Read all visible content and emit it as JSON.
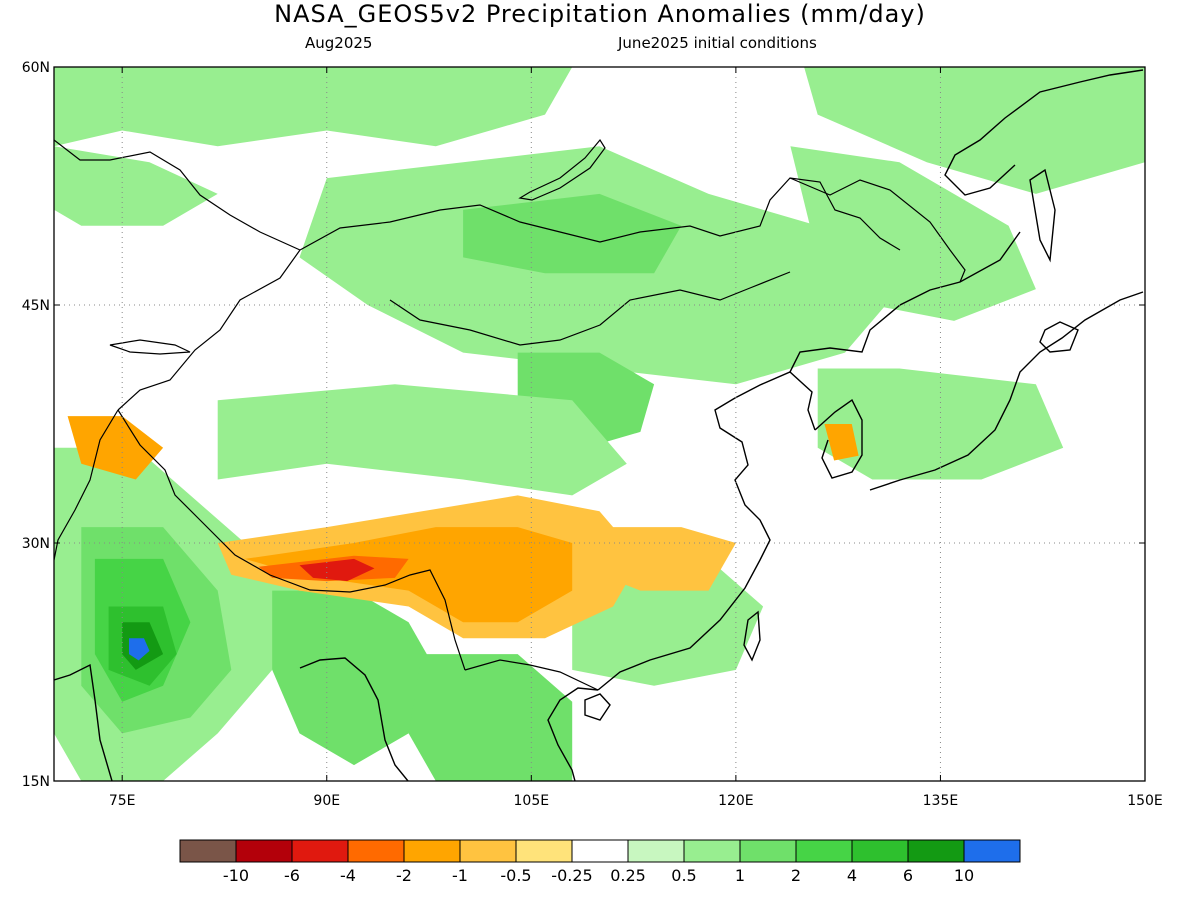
{
  "header": {
    "title": "NASA_GEOS5v2 Precipitation Anomalies (mm/day)",
    "valid_month": "Aug2025",
    "init_conditions": "June2025 initial conditions"
  },
  "map": {
    "projection": "lat-lon",
    "lon_range": [
      70,
      150
    ],
    "lat_range": [
      15,
      60
    ],
    "lon_ticks": [
      {
        "value": 75,
        "label": "75E"
      },
      {
        "value": 90,
        "label": "90E"
      },
      {
        "value": 105,
        "label": "105E"
      },
      {
        "value": 120,
        "label": "120E"
      },
      {
        "value": 135,
        "label": "135E"
      },
      {
        "value": 150,
        "label": "150E"
      }
    ],
    "lat_ticks": [
      {
        "value": 60,
        "label": "60N"
      },
      {
        "value": 45,
        "label": "45N"
      },
      {
        "value": 30,
        "label": "30N"
      },
      {
        "value": 15,
        "label": "15N"
      }
    ],
    "grid": true,
    "grid_style": "dotted",
    "coastline_color": "#000000",
    "regions": [
      {
        "name": "northern-siberia",
        "class": "0.5 to 1",
        "polygon": [
          [
            70,
            60
          ],
          [
            108,
            60
          ],
          [
            106,
            57
          ],
          [
            98,
            55
          ],
          [
            90,
            56
          ],
          [
            82,
            55
          ],
          [
            75,
            56
          ],
          [
            70,
            55
          ]
        ]
      },
      {
        "name": "northwest-kazakhstan",
        "class": "0.5 to 1",
        "polygon": [
          [
            70,
            55
          ],
          [
            77,
            54
          ],
          [
            82,
            52
          ],
          [
            78,
            50
          ],
          [
            72,
            50
          ],
          [
            70,
            51
          ]
        ]
      },
      {
        "name": "mongolia-baikal",
        "class": "0.5 to 1",
        "polygon": [
          [
            90,
            53
          ],
          [
            100,
            54
          ],
          [
            110,
            55
          ],
          [
            118,
            52
          ],
          [
            126,
            50
          ],
          [
            132,
            46
          ],
          [
            128,
            42
          ],
          [
            120,
            40
          ],
          [
            110,
            41
          ],
          [
            100,
            42
          ],
          [
            93,
            45
          ],
          [
            88,
            48
          ]
        ]
      },
      {
        "name": "mongolia-core",
        "class": "1 to 2",
        "polygon": [
          [
            100,
            51
          ],
          [
            110,
            52
          ],
          [
            116,
            50
          ],
          [
            114,
            47
          ],
          [
            106,
            47
          ],
          [
            100,
            48
          ]
        ]
      },
      {
        "name": "north-china",
        "class": "1 to 2",
        "polygon": [
          [
            104,
            42
          ],
          [
            110,
            42
          ],
          [
            114,
            40
          ],
          [
            113,
            37
          ],
          [
            109,
            36
          ],
          [
            104,
            38
          ]
        ]
      },
      {
        "name": "northeast-china",
        "class": "0.5 to 1",
        "polygon": [
          [
            124,
            55
          ],
          [
            132,
            54
          ],
          [
            140,
            50
          ],
          [
            142,
            46
          ],
          [
            136,
            44
          ],
          [
            130,
            45
          ],
          [
            126,
            48
          ]
        ]
      },
      {
        "name": "kamchatka-okhotsk",
        "class": "0.5 to 1",
        "polygon": [
          [
            125,
            60
          ],
          [
            150,
            60
          ],
          [
            150,
            54
          ],
          [
            142,
            52
          ],
          [
            134,
            54
          ],
          [
            126,
            57
          ]
        ]
      },
      {
        "name": "tibet-band",
        "class": "0.5 to 1",
        "polygon": [
          [
            82,
            39
          ],
          [
            95,
            40
          ],
          [
            108,
            39
          ],
          [
            112,
            35
          ],
          [
            108,
            33
          ],
          [
            100,
            34
          ],
          [
            90,
            35
          ],
          [
            82,
            34
          ]
        ]
      },
      {
        "name": "west-india",
        "class": "0.5 to 1",
        "polygon": [
          [
            70,
            36
          ],
          [
            76,
            36
          ],
          [
            80,
            33
          ],
          [
            84,
            30
          ],
          [
            88,
            27
          ],
          [
            86,
            22
          ],
          [
            82,
            18
          ],
          [
            78,
            15
          ],
          [
            72,
            15
          ],
          [
            70,
            18
          ]
        ]
      },
      {
        "name": "west-india-wet",
        "class": "1 to 2",
        "polygon": [
          [
            72,
            31
          ],
          [
            78,
            31
          ],
          [
            82,
            27
          ],
          [
            83,
            22
          ],
          [
            80,
            19
          ],
          [
            75,
            18
          ],
          [
            72,
            21
          ]
        ]
      },
      {
        "name": "west-india-wetter",
        "class": "2 to 4",
        "polygon": [
          [
            73,
            29
          ],
          [
            78,
            29
          ],
          [
            80,
            25
          ],
          [
            78,
            21
          ],
          [
            75,
            20
          ],
          [
            73,
            23
          ]
        ]
      },
      {
        "name": "central-india-core",
        "class": "4 to 6",
        "polygon": [
          [
            74,
            26
          ],
          [
            78,
            26
          ],
          [
            79,
            23
          ],
          [
            77,
            21
          ],
          [
            74,
            22
          ]
        ]
      },
      {
        "name": "central-india-max",
        "class": "6 to 10",
        "polygon": [
          [
            75,
            25
          ],
          [
            77,
            25
          ],
          [
            78,
            23
          ],
          [
            76,
            22
          ],
          [
            75,
            23
          ]
        ]
      },
      {
        "name": "central-india-peak",
        "class": "> 10",
        "polygon": [
          [
            75.5,
            24
          ],
          [
            76.6,
            24
          ],
          [
            77,
            23.2
          ],
          [
            76.2,
            22.6
          ],
          [
            75.5,
            23
          ]
        ]
      },
      {
        "name": "bangladesh-myanmar",
        "class": "1 to 2",
        "polygon": [
          [
            86,
            27
          ],
          [
            92,
            27
          ],
          [
            96,
            25
          ],
          [
            98,
            22
          ],
          [
            96,
            18
          ],
          [
            92,
            16
          ],
          [
            88,
            18
          ],
          [
            86,
            22
          ]
        ]
      },
      {
        "name": "indochina",
        "class": "1 to 2",
        "polygon": [
          [
            97,
            23
          ],
          [
            104,
            23
          ],
          [
            108,
            20
          ],
          [
            108,
            15
          ],
          [
            98,
            15
          ],
          [
            96,
            18
          ]
        ]
      },
      {
        "name": "south-china",
        "class": "0.5 to 1",
        "polygon": [
          [
            108,
            28
          ],
          [
            118,
            29
          ],
          [
            122,
            26
          ],
          [
            120,
            22
          ],
          [
            114,
            21
          ],
          [
            108,
            22
          ]
        ]
      },
      {
        "name": "korea-japan",
        "class": "0.5 to 1",
        "polygon": [
          [
            126,
            41
          ],
          [
            132,
            41
          ],
          [
            142,
            40
          ],
          [
            144,
            36
          ],
          [
            138,
            34
          ],
          [
            130,
            34
          ],
          [
            126,
            36
          ]
        ]
      },
      {
        "name": "korea-peninsula-dry",
        "class": "-2 to -1",
        "polygon": [
          [
            126.5,
            37.5
          ],
          [
            128.5,
            37.5
          ],
          [
            129,
            35.5
          ],
          [
            127.2,
            35.2
          ]
        ]
      },
      {
        "name": "tibet-himalaya-dry",
        "class": "-1 to -0.5",
        "polygon": [
          [
            82,
            30
          ],
          [
            90,
            31
          ],
          [
            97,
            32
          ],
          [
            104,
            33
          ],
          [
            110,
            32
          ],
          [
            113,
            29
          ],
          [
            111,
            26
          ],
          [
            106,
            24
          ],
          [
            100,
            24
          ],
          [
            96,
            26
          ],
          [
            88,
            27
          ],
          [
            83,
            28
          ]
        ]
      },
      {
        "name": "himalaya-dry-core",
        "class": "-2 to -1",
        "polygon": [
          [
            84,
            29
          ],
          [
            92,
            30
          ],
          [
            98,
            31
          ],
          [
            104,
            31
          ],
          [
            108,
            30
          ],
          [
            108,
            27
          ],
          [
            104,
            25
          ],
          [
            100,
            25
          ],
          [
            96,
            27
          ],
          [
            88,
            28
          ]
        ]
      },
      {
        "name": "himalaya-drier",
        "class": "-4 to -2",
        "polygon": [
          [
            85,
            28.5
          ],
          [
            92,
            29.2
          ],
          [
            96,
            29
          ],
          [
            95,
            27.8
          ],
          [
            90,
            27.6
          ],
          [
            86,
            27.8
          ]
        ]
      },
      {
        "name": "himalaya-peak-dry",
        "class": "-6 to -4",
        "polygon": [
          [
            88,
            28.6
          ],
          [
            92,
            29
          ],
          [
            93.5,
            28.4
          ],
          [
            91.5,
            27.6
          ],
          [
            89,
            27.8
          ]
        ]
      },
      {
        "name": "karakoram-dry",
        "class": "-2 to -1",
        "polygon": [
          [
            71,
            38
          ],
          [
            75,
            38
          ],
          [
            78,
            36
          ],
          [
            76,
            34
          ],
          [
            72,
            35
          ]
        ]
      },
      {
        "name": "yangtze-dry",
        "class": "-1 to -0.5",
        "polygon": [
          [
            110,
            31
          ],
          [
            116,
            31
          ],
          [
            120,
            30
          ],
          [
            118,
            27
          ],
          [
            113,
            27
          ],
          [
            110,
            28
          ]
        ]
      }
    ]
  },
  "colorbar": {
    "classes": [
      {
        "label": "< -10",
        "color": "#7a5548"
      },
      {
        "label": "-10 to -6",
        "color": "#b3000a"
      },
      {
        "label": "-6 to -4",
        "color": "#e0190f"
      },
      {
        "label": "-4 to -2",
        "color": "#ff6a00"
      },
      {
        "label": "-2 to -1",
        "color": "#ffa500"
      },
      {
        "label": "-1 to -0.5",
        "color": "#ffc340"
      },
      {
        "label": "-0.5 to -0.25",
        "color": "#ffe37a"
      },
      {
        "label": "-0.25 to 0.25",
        "color": "#ffffff"
      },
      {
        "label": "0.25 to 0.5",
        "color": "#c8f7c0"
      },
      {
        "label": "0.5 to 1",
        "color": "#98ee90"
      },
      {
        "label": "1 to 2",
        "color": "#6fe06a"
      },
      {
        "label": "2 to 4",
        "color": "#46d446"
      },
      {
        "label": "4 to 6",
        "color": "#2ec02e"
      },
      {
        "label": "6 to 10",
        "color": "#139a13"
      },
      {
        "label": "> 10",
        "color": "#1e6eeb"
      }
    ],
    "tick_labels": [
      "-10",
      "-6",
      "-4",
      "-2",
      "-1",
      "-0.5",
      "-0.25",
      "0.25",
      "0.5",
      "1",
      "2",
      "4",
      "6",
      "10"
    ]
  }
}
